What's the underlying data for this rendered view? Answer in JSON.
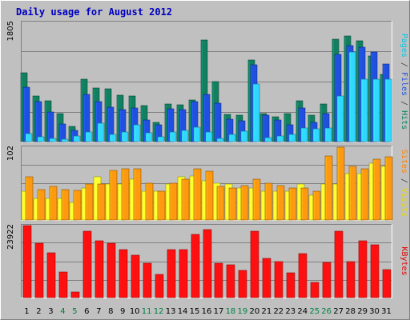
{
  "chart_data": {
    "type": "bar",
    "title": "Daily usage for August 2012",
    "categories": [
      "1",
      "2",
      "3",
      "4",
      "5",
      "6",
      "7",
      "8",
      "9",
      "10",
      "11",
      "12",
      "13",
      "14",
      "15",
      "16",
      "17",
      "18",
      "19",
      "20",
      "21",
      "22",
      "23",
      "24",
      "25",
      "26",
      "27",
      "28",
      "29",
      "30",
      "31"
    ],
    "weekend_days": [
      4,
      5,
      11,
      12,
      18,
      19,
      25,
      26
    ],
    "panels": [
      {
        "max_label": "1805",
        "ymax": 1805,
        "axis_labels": [
          {
            "text": "Pages",
            "color": "#00c8e8"
          },
          {
            "text": " / ",
            "color": "#404040"
          },
          {
            "text": "Files",
            "color": "#2050d8"
          },
          {
            "text": " / ",
            "color": "#404040"
          },
          {
            "text": "Hits",
            "color": "#008060"
          }
        ],
        "series": [
          {
            "key": "hits",
            "color": "#108060",
            "values": [
              1045,
              690,
              620,
              420,
              230,
              950,
              810,
              800,
              700,
              690,
              540,
              290,
              570,
              560,
              630,
              1540,
              910,
              410,
              400,
              1230,
              430,
              380,
              430,
              620,
              400,
              570,
              1550,
              1600,
              1530,
              1300,
              1020
            ]
          },
          {
            "key": "files",
            "color": "#2050e0",
            "values": [
              820,
              610,
              450,
              270,
              170,
              720,
              600,
              520,
              480,
              510,
              330,
              250,
              500,
              490,
              610,
              720,
              580,
              340,
              320,
              1160,
              400,
              330,
              250,
              510,
              290,
              420,
              1320,
              1450,
              1430,
              1360,
              1170
            ]
          },
          {
            "key": "pages",
            "color": "#30d8ff",
            "values": [
              120,
              70,
              50,
              40,
              90,
              140,
              280,
              110,
              150,
              260,
              130,
              70,
              140,
              170,
              220,
              140,
              50,
              110,
              160,
              870,
              60,
              90,
              110,
              200,
              190,
              210,
              690,
              1360,
              950,
              950,
              940
            ]
          }
        ]
      },
      {
        "max_label": "102",
        "ymax": 102,
        "axis_labels": [
          {
            "text": "Sites",
            "color": "#ff8000"
          },
          {
            "text": " / ",
            "color": "#404040"
          },
          {
            "text": "Visits",
            "color": "#e8d800"
          }
        ],
        "series": [
          {
            "key": "visits",
            "color": "#ffff30",
            "values": [
              40,
              30,
              30,
              30,
              25,
              45,
              60,
              50,
              50,
              57,
              40,
              40,
              50,
              60,
              62,
              55,
              52,
              50,
              45,
              45,
              40,
              40,
              40,
              50,
              35,
              50,
              50,
              65,
              65,
              80,
              75
            ]
          },
          {
            "key": "sites",
            "color": "#ff9a10",
            "values": [
              60,
              43,
              47,
              43,
              42,
              50,
              50,
              70,
              72,
              72,
              52,
              40,
              52,
              57,
              72,
              68,
              47,
              45,
              48,
              57,
              52,
              48,
              45,
              45,
              40,
              90,
              102,
              75,
              72,
              85,
              88
            ]
          }
        ]
      },
      {
        "max_label": "23922",
        "ymax": 23922,
        "axis_labels": [
          {
            "text": "KBytes",
            "color": "#e00000"
          }
        ],
        "series": [
          {
            "key": "kbytes",
            "color": "#ff1010",
            "values": [
              23922,
              18000,
              15000,
              8500,
              1800,
              22000,
              19000,
              18000,
              16000,
              14000,
              11500,
              7700,
              16000,
              16000,
              21000,
              22500,
              11500,
              11000,
              9000,
              22000,
              13000,
              12000,
              8200,
              14500,
              5000,
              11800,
              22000,
              12000,
              19000,
              17500,
              9200
            ]
          }
        ]
      }
    ]
  }
}
